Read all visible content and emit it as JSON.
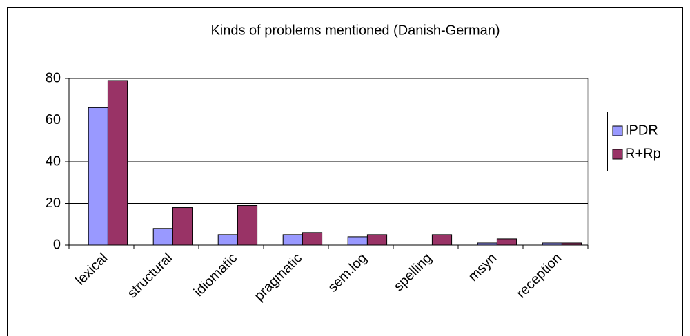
{
  "chart_data": {
    "type": "bar",
    "title": "Kinds of problems mentioned (Danish-German)",
    "categories": [
      "lexical",
      "structural",
      "idiomatic",
      "pragmatic",
      "sem.log",
      "spelling",
      "msyn",
      "reception"
    ],
    "series": [
      {
        "name": "IPDR",
        "color": "#9999ff",
        "values": [
          66,
          8,
          5,
          5,
          4,
          0,
          1,
          1
        ]
      },
      {
        "name": "R+Rp",
        "color": "#993366",
        "values": [
          79,
          18,
          19,
          6,
          5,
          5,
          3,
          1
        ]
      }
    ],
    "ylim": [
      0,
      80
    ],
    "yticks": [
      0,
      20,
      40,
      60,
      80
    ],
    "grid": true,
    "legend": "right"
  }
}
